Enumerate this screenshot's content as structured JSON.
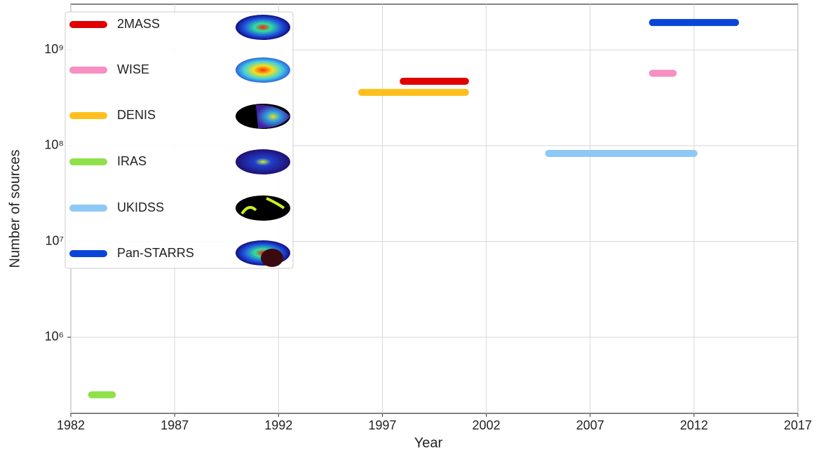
{
  "chart_data": {
    "type": "line",
    "xlabel": "Year",
    "ylabel": "Number of sources",
    "xlim": [
      1982,
      2017
    ],
    "xticks": [
      1982,
      1987,
      1992,
      1997,
      2002,
      2007,
      2012,
      2017
    ],
    "ylim": [
      160000,
      3000000000
    ],
    "yscale": "log",
    "yticks": [
      {
        "value": 1000000,
        "label": "10⁶"
      },
      {
        "value": 10000000,
        "label": "10⁷"
      },
      {
        "value": 100000000,
        "label": "10⁸"
      },
      {
        "value": 1000000000,
        "label": "10⁹"
      }
    ],
    "grid": true,
    "legend": "upper left",
    "series": [
      {
        "name": "2MASS",
        "color": "#e00000",
        "x": [
          1998,
          2001
        ],
        "values": [
          470000000,
          470000000
        ]
      },
      {
        "name": "WISE",
        "color": "#f78fc0",
        "x": [
          2010,
          2011
        ],
        "values": [
          570000000,
          570000000
        ]
      },
      {
        "name": "DENIS",
        "color": "#ffc01e",
        "x": [
          1996,
          2001
        ],
        "values": [
          360000000,
          360000000
        ]
      },
      {
        "name": "IRAS",
        "color": "#8fe04a",
        "x": [
          1983,
          1984
        ],
        "values": [
          250000,
          250000
        ]
      },
      {
        "name": "UKIDSS",
        "color": "#8ec8f5",
        "x": [
          2005,
          2012
        ],
        "values": [
          83000000,
          83000000
        ]
      },
      {
        "name": "Pan-STARRS",
        "color": "#0a45d8",
        "x": [
          2010,
          2014
        ],
        "values": [
          1930000000,
          1930000000
        ]
      }
    ]
  }
}
